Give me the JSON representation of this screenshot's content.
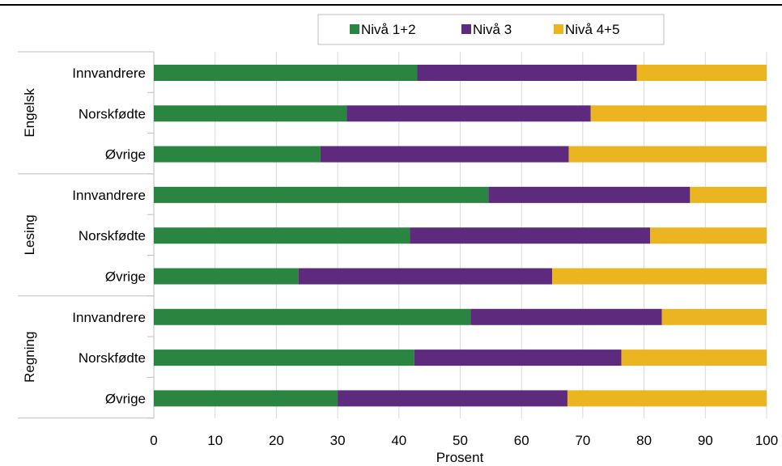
{
  "chart_data": {
    "type": "bar",
    "orientation": "horizontal",
    "stacked": true,
    "xlabel": "Prosent",
    "xlim": [
      0,
      100
    ],
    "xticks": [
      0,
      10,
      20,
      30,
      40,
      50,
      60,
      70,
      80,
      90,
      100
    ],
    "grid": "vertical",
    "legend": "top-center",
    "groups": [
      {
        "name": "Engelsk",
        "categories": [
          "Innvandrere",
          "Norskfødte",
          "Øvrige"
        ],
        "values": {
          "Nivå 1+2": [
            43,
            31.5,
            27.2
          ],
          "Nivå 3": [
            35.8,
            39.8,
            40.5
          ],
          "Nivå 4+5": [
            21.2,
            28.7,
            32.3
          ]
        }
      },
      {
        "name": "Lesing",
        "categories": [
          "Innvandrere",
          "Norskfødte",
          "Øvrige"
        ],
        "values": {
          "Nivå 1+2": [
            54.6,
            41.8,
            23.6
          ],
          "Nivå 3": [
            32.9,
            39.2,
            41.4
          ],
          "Nivå 4+5": [
            12.5,
            19,
            35
          ]
        }
      },
      {
        "name": "Regning",
        "categories": [
          "Innvandrere",
          "Norskfødte",
          "Øvrige"
        ],
        "values": {
          "Nivå 1+2": [
            51.7,
            42.5,
            30
          ],
          "Nivå 3": [
            31.2,
            33.8,
            37.5
          ],
          "Nivå 4+5": [
            17.1,
            23.7,
            32.5
          ]
        }
      }
    ],
    "series": [
      {
        "name": "Nivå 1+2",
        "color": "#2a8540"
      },
      {
        "name": "Nivå 3",
        "color": "#5e2a7e"
      },
      {
        "name": "Nivå 4+5",
        "color": "#ebb421"
      }
    ]
  }
}
